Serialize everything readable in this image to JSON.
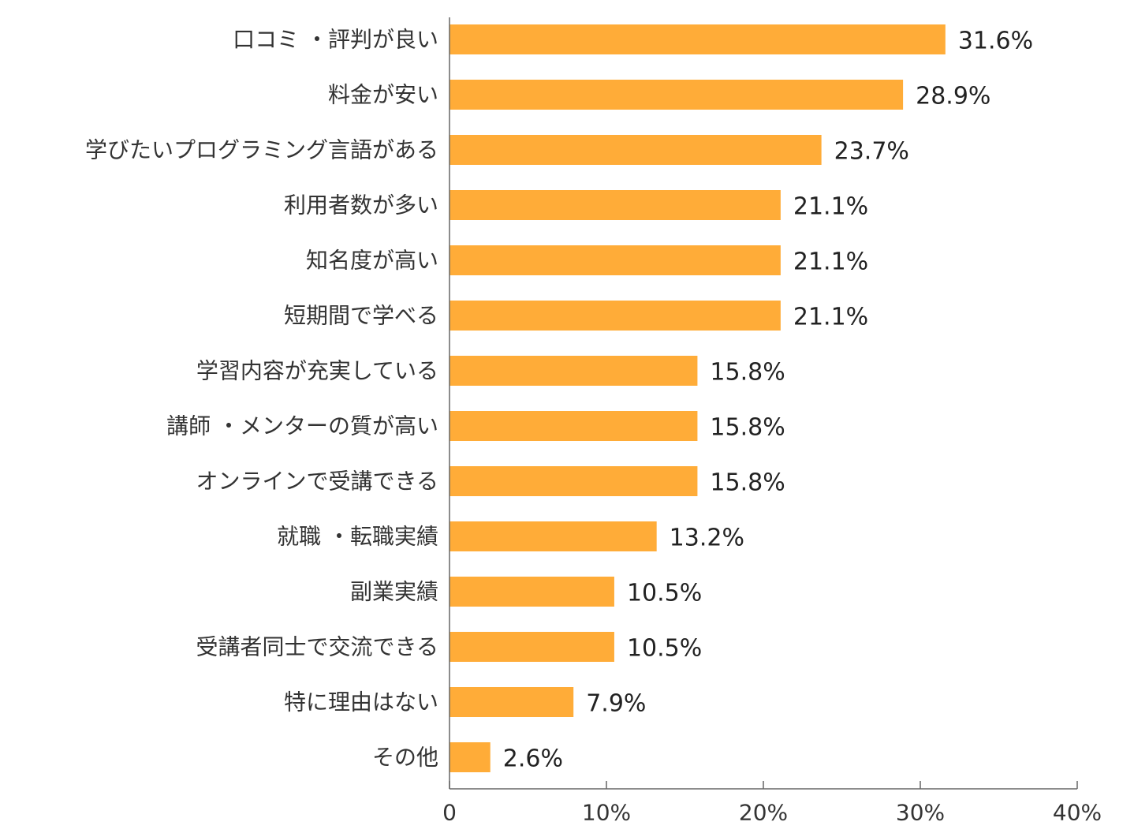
{
  "chart_data": {
    "type": "bar",
    "orientation": "horizontal",
    "categories": [
      "口コミ・評判が良い",
      "料金が安い",
      "学びたいプログラミング言語がある",
      "利用者数が多い",
      "知名度が高い",
      "短期間で学べる",
      "学習内容が充実している",
      "講師・メンターの質が高い",
      "オンラインで受講できる",
      "就職・転職実績",
      "副業実績",
      "受講者同士で交流できる",
      "特に理由はない",
      "その他"
    ],
    "display_categories": [
      "口コミ ・評判が良い",
      "料金が安い",
      "学びたいプログラミング言語がある",
      "利用者数が多い",
      "知名度が高い",
      "短期間で学べる",
      "学習内容が充実している",
      "講師 ・メンターの質が高い",
      "オンラインで受講できる",
      "就職 ・転職実績",
      "副業実績",
      "受講者同士で交流できる",
      "特に理由はない",
      "その他"
    ],
    "values": [
      31.6,
      28.9,
      23.7,
      21.1,
      21.1,
      21.1,
      15.8,
      15.8,
      15.8,
      13.2,
      10.5,
      10.5,
      7.9,
      2.6
    ],
    "value_labels": [
      "31.6%",
      "28.9%",
      "23.7%",
      "21.1%",
      "21.1%",
      "21.1%",
      "15.8%",
      "15.8%",
      "15.8%",
      "13.2%",
      "10.5%",
      "10.5%",
      "7.9%",
      "2.6%"
    ],
    "xlim": [
      0,
      40
    ],
    "x_ticks": [
      0,
      10,
      20,
      30,
      40
    ],
    "x_tick_labels": [
      "0",
      "10%",
      "20%",
      "30%",
      "40%"
    ],
    "bar_color": "#FFAC38",
    "axis_color": "#666666",
    "title": "",
    "xlabel": "",
    "ylabel": "",
    "grid": false,
    "legend": "none"
  }
}
